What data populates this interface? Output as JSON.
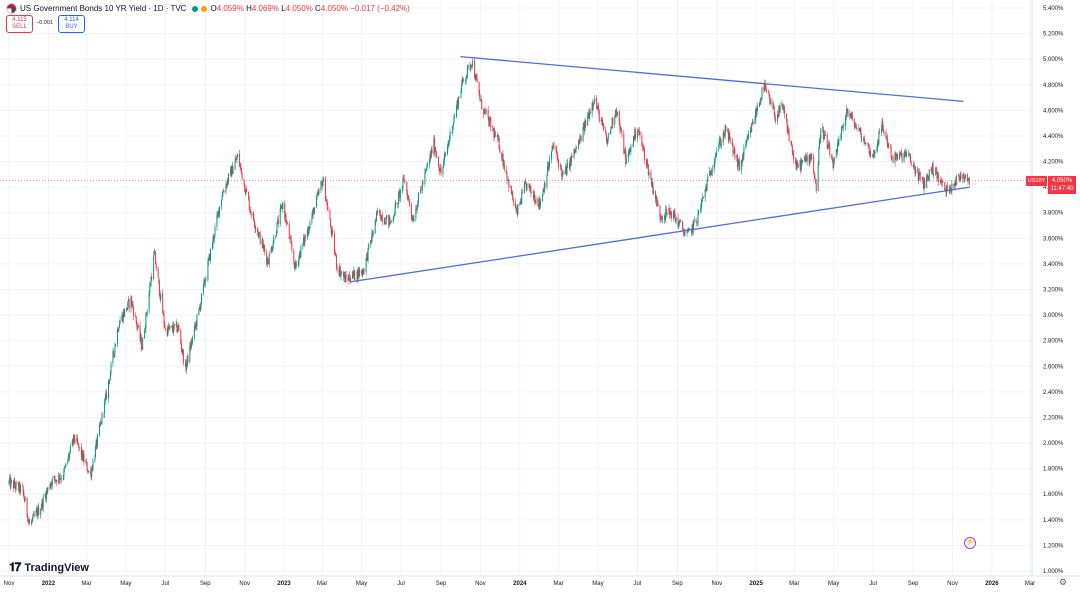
{
  "header": {
    "title": "US Government Bonds 10 YR Yield · 1D · TVC",
    "ohlc": {
      "o_label": "O",
      "o": "4.059%",
      "h_label": "H",
      "h": "4.069%",
      "l_label": "L",
      "l": "4.050%",
      "c_label": "C",
      "c": "4.050%",
      "change": "−0.017 (−0.42%)"
    },
    "sell": {
      "price": "4.115",
      "label": "SELL"
    },
    "buy": {
      "price": "4.114",
      "label": "BUY"
    },
    "spread": "−0.001",
    "colors": {
      "up": "#089981",
      "down": "#f23645",
      "accent": "#2962ff"
    }
  },
  "price_scale": {
    "symbol_tag": "US10Y",
    "last_price": "4.050%",
    "countdown": "11:47:40"
  },
  "branding": {
    "logo_text": "TradingView",
    "logo_icon": "tradingview-logo-icon"
  },
  "chart_data": {
    "type": "line",
    "title": "US Government Bonds 10 YR Yield · 1D · TVC",
    "xlabel": "",
    "ylabel": "",
    "y_axis": {
      "unit": "%",
      "range": [
        1.0,
        5.4
      ],
      "ticks": [
        "5.400%",
        "5.200%",
        "5.000%",
        "4.800%",
        "4.600%",
        "4.400%",
        "4.200%",
        "4.000%",
        "3.800%",
        "3.600%",
        "3.400%",
        "3.200%",
        "3.000%",
        "2.800%",
        "2.600%",
        "2.400%",
        "2.200%",
        "2.000%",
        "1.800%",
        "1.600%",
        "1.400%",
        "1.200%",
        "1.000%"
      ],
      "tick_values": [
        5.4,
        5.2,
        5.0,
        4.8,
        4.6,
        4.4,
        4.2,
        4.0,
        3.8,
        3.6,
        3.4,
        3.2,
        3.0,
        2.8,
        2.6,
        2.4,
        2.2,
        2.0,
        1.8,
        1.6,
        1.4,
        1.2,
        1.0
      ],
      "position": "right"
    },
    "x_axis": {
      "range": [
        "2021-11-01",
        "2026-03-15"
      ],
      "ticks": [
        {
          "label": "Nov",
          "date": "2021-11-01",
          "bold": false
        },
        {
          "label": "2022",
          "date": "2022-01-01",
          "bold": true
        },
        {
          "label": "Mar",
          "date": "2022-03-01",
          "bold": false
        },
        {
          "label": "May",
          "date": "2022-05-01",
          "bold": false
        },
        {
          "label": "Jul",
          "date": "2022-07-01",
          "bold": false
        },
        {
          "label": "Sep",
          "date": "2022-09-01",
          "bold": false
        },
        {
          "label": "Nov",
          "date": "2022-11-01",
          "bold": false
        },
        {
          "label": "2023",
          "date": "2023-01-01",
          "bold": true
        },
        {
          "label": "Mar",
          "date": "2023-03-01",
          "bold": false
        },
        {
          "label": "May",
          "date": "2023-05-01",
          "bold": false
        },
        {
          "label": "Jul",
          "date": "2023-07-01",
          "bold": false
        },
        {
          "label": "Sep",
          "date": "2023-09-01",
          "bold": false
        },
        {
          "label": "Nov",
          "date": "2023-11-01",
          "bold": false
        },
        {
          "label": "2024",
          "date": "2024-01-01",
          "bold": true
        },
        {
          "label": "Mar",
          "date": "2024-03-01",
          "bold": false
        },
        {
          "label": "May",
          "date": "2024-05-01",
          "bold": false
        },
        {
          "label": "Jul",
          "date": "2024-07-01",
          "bold": false
        },
        {
          "label": "Sep",
          "date": "2024-09-01",
          "bold": false
        },
        {
          "label": "Nov",
          "date": "2024-11-01",
          "bold": false
        },
        {
          "label": "2025",
          "date": "2025-01-01",
          "bold": true
        },
        {
          "label": "Mar",
          "date": "2025-03-01",
          "bold": false
        },
        {
          "label": "May",
          "date": "2025-05-01",
          "bold": false
        },
        {
          "label": "Jul",
          "date": "2025-07-01",
          "bold": false
        },
        {
          "label": "Sep",
          "date": "2025-09-01",
          "bold": false
        },
        {
          "label": "Nov",
          "date": "2025-11-01",
          "bold": false
        },
        {
          "label": "2026",
          "date": "2026-01-01",
          "bold": true
        },
        {
          "label": "Mar",
          "date": "2026-03-01",
          "bold": false
        }
      ]
    },
    "grid": true,
    "legend": "none",
    "series": [
      {
        "style": "candlestick",
        "points": [
          {
            "x": "2021-11-01",
            "y": 1.69
          },
          {
            "x": "2021-11-22",
            "y": 1.63
          },
          {
            "x": "2021-12-03",
            "y": 1.36
          },
          {
            "x": "2021-12-20",
            "y": 1.5
          },
          {
            "x": "2022-01-05",
            "y": 1.7
          },
          {
            "x": "2022-01-24",
            "y": 1.75
          },
          {
            "x": "2022-02-10",
            "y": 2.04
          },
          {
            "x": "2022-03-07",
            "y": 1.75
          },
          {
            "x": "2022-03-31",
            "y": 2.35
          },
          {
            "x": "2022-04-20",
            "y": 2.94
          },
          {
            "x": "2022-05-09",
            "y": 3.12
          },
          {
            "x": "2022-05-26",
            "y": 2.75
          },
          {
            "x": "2022-06-14",
            "y": 3.48
          },
          {
            "x": "2022-07-01",
            "y": 2.88
          },
          {
            "x": "2022-07-21",
            "y": 2.9
          },
          {
            "x": "2022-08-01",
            "y": 2.58
          },
          {
            "x": "2022-08-22",
            "y": 3.03
          },
          {
            "x": "2022-09-27",
            "y": 3.95
          },
          {
            "x": "2022-10-21",
            "y": 4.24
          },
          {
            "x": "2022-11-10",
            "y": 3.82
          },
          {
            "x": "2022-12-07",
            "y": 3.42
          },
          {
            "x": "2022-12-30",
            "y": 3.87
          },
          {
            "x": "2023-01-18",
            "y": 3.37
          },
          {
            "x": "2023-02-10",
            "y": 3.72
          },
          {
            "x": "2023-03-02",
            "y": 4.06
          },
          {
            "x": "2023-03-24",
            "y": 3.38
          },
          {
            "x": "2023-04-06",
            "y": 3.28
          },
          {
            "x": "2023-05-04",
            "y": 3.35
          },
          {
            "x": "2023-05-26",
            "y": 3.8
          },
          {
            "x": "2023-06-15",
            "y": 3.72
          },
          {
            "x": "2023-07-06",
            "y": 4.06
          },
          {
            "x": "2023-07-19",
            "y": 3.75
          },
          {
            "x": "2023-08-21",
            "y": 4.34
          },
          {
            "x": "2023-09-01",
            "y": 4.1
          },
          {
            "x": "2023-10-03",
            "y": 4.8
          },
          {
            "x": "2023-10-19",
            "y": 4.99
          },
          {
            "x": "2023-11-02",
            "y": 4.65
          },
          {
            "x": "2023-11-30",
            "y": 4.33
          },
          {
            "x": "2023-12-27",
            "y": 3.79
          },
          {
            "x": "2024-01-10",
            "y": 4.02
          },
          {
            "x": "2024-02-01",
            "y": 3.87
          },
          {
            "x": "2024-02-22",
            "y": 4.33
          },
          {
            "x": "2024-03-08",
            "y": 4.08
          },
          {
            "x": "2024-04-02",
            "y": 4.35
          },
          {
            "x": "2024-04-25",
            "y": 4.7
          },
          {
            "x": "2024-05-15",
            "y": 4.35
          },
          {
            "x": "2024-05-29",
            "y": 4.62
          },
          {
            "x": "2024-06-14",
            "y": 4.2
          },
          {
            "x": "2024-07-01",
            "y": 4.47
          },
          {
            "x": "2024-08-05",
            "y": 3.78
          },
          {
            "x": "2024-08-23",
            "y": 3.8
          },
          {
            "x": "2024-09-16",
            "y": 3.62
          },
          {
            "x": "2024-10-01",
            "y": 3.74
          },
          {
            "x": "2024-10-31",
            "y": 4.28
          },
          {
            "x": "2024-11-15",
            "y": 4.45
          },
          {
            "x": "2024-12-06",
            "y": 4.15
          },
          {
            "x": "2025-01-13",
            "y": 4.79
          },
          {
            "x": "2025-01-31",
            "y": 4.55
          },
          {
            "x": "2025-02-11",
            "y": 4.62
          },
          {
            "x": "2025-03-04",
            "y": 4.15
          },
          {
            "x": "2025-03-28",
            "y": 4.25
          },
          {
            "x": "2025-04-04",
            "y": 3.99
          },
          {
            "x": "2025-04-11",
            "y": 4.48
          },
          {
            "x": "2025-05-01",
            "y": 4.17
          },
          {
            "x": "2025-05-21",
            "y": 4.6
          },
          {
            "x": "2025-06-13",
            "y": 4.4
          },
          {
            "x": "2025-07-01",
            "y": 4.24
          },
          {
            "x": "2025-07-15",
            "y": 4.48
          },
          {
            "x": "2025-08-01",
            "y": 4.22
          },
          {
            "x": "2025-08-22",
            "y": 4.26
          },
          {
            "x": "2025-09-17",
            "y": 4.02
          },
          {
            "x": "2025-10-01",
            "y": 4.15
          },
          {
            "x": "2025-10-22",
            "y": 3.97
          },
          {
            "x": "2025-11-12",
            "y": 4.08
          },
          {
            "x": "2025-11-20",
            "y": 4.1
          },
          {
            "x": "2025-11-28",
            "y": 4.05
          }
        ]
      }
    ],
    "trendlines": [
      {
        "from": {
          "x": "2023-10-01",
          "y": 5.02
        },
        "to": {
          "x": "2025-11-18",
          "y": 4.67
        },
        "color": "#4d6fdb"
      },
      {
        "from": {
          "x": "2023-04-14",
          "y": 3.26
        },
        "to": {
          "x": "2025-11-28",
          "y": 4.0
        },
        "color": "#4d6fdb"
      }
    ],
    "last_price_line": {
      "y": 4.05,
      "color": "#f23645"
    }
  }
}
